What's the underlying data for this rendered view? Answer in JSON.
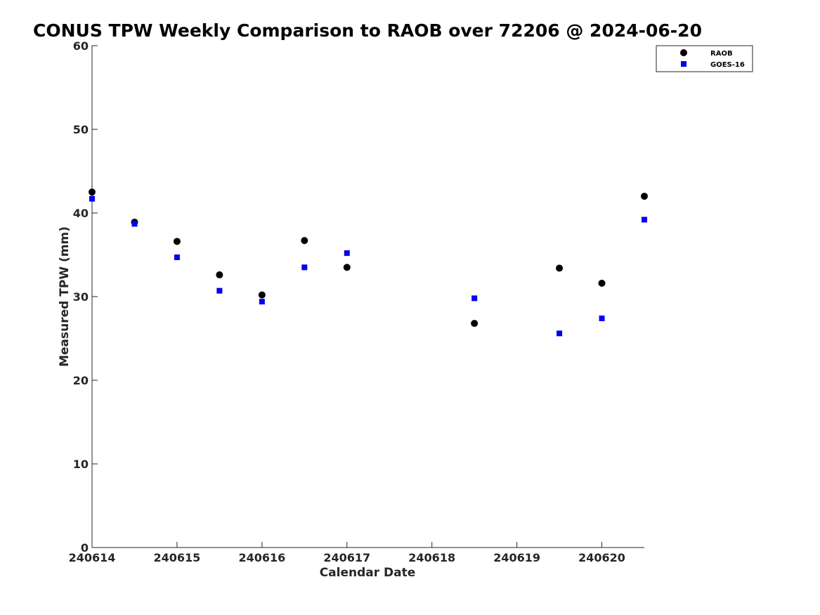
{
  "chart_data": {
    "type": "scatter",
    "title": "CONUS TPW Weekly Comparison to RAOB over 72206 @ 2024-06-20",
    "xlabel": "Calendar Date",
    "ylabel": "Measured TPW (mm)",
    "x_ticks": [
      {
        "value": 0,
        "label": "240614"
      },
      {
        "value": 1,
        "label": "240615"
      },
      {
        "value": 2,
        "label": "240616"
      },
      {
        "value": 3,
        "label": "240617"
      },
      {
        "value": 4,
        "label": "240618"
      },
      {
        "value": 5,
        "label": "240619"
      },
      {
        "value": 6,
        "label": "240620"
      }
    ],
    "y_ticks": [
      0,
      10,
      20,
      30,
      40,
      50,
      60
    ],
    "ylim": [
      0,
      60
    ],
    "grid": false,
    "legend_position": "top-right",
    "series": [
      {
        "name": "RAOB",
        "marker": "circle",
        "color": "#000000",
        "points": [
          {
            "x": 0.0,
            "y": 42.5
          },
          {
            "x": 0.5,
            "y": 38.9
          },
          {
            "x": 1.0,
            "y": 36.6
          },
          {
            "x": 1.5,
            "y": 32.6
          },
          {
            "x": 2.0,
            "y": 30.2
          },
          {
            "x": 2.5,
            "y": 36.7
          },
          {
            "x": 3.0,
            "y": 33.5
          },
          {
            "x": 4.5,
            "y": 26.8
          },
          {
            "x": 5.5,
            "y": 33.4
          },
          {
            "x": 6.0,
            "y": 31.6
          },
          {
            "x": 6.5,
            "y": 42.0
          }
        ]
      },
      {
        "name": "GOES-16",
        "marker": "square",
        "color": "#0000ee",
        "points": [
          {
            "x": 0.0,
            "y": 41.7
          },
          {
            "x": 0.5,
            "y": 38.7
          },
          {
            "x": 1.0,
            "y": 34.7
          },
          {
            "x": 1.5,
            "y": 30.7
          },
          {
            "x": 2.0,
            "y": 29.4
          },
          {
            "x": 2.5,
            "y": 33.5
          },
          {
            "x": 3.0,
            "y": 35.2
          },
          {
            "x": 4.5,
            "y": 29.8
          },
          {
            "x": 5.5,
            "y": 25.6
          },
          {
            "x": 6.0,
            "y": 27.4
          },
          {
            "x": 6.5,
            "y": 39.2
          }
        ]
      }
    ]
  }
}
